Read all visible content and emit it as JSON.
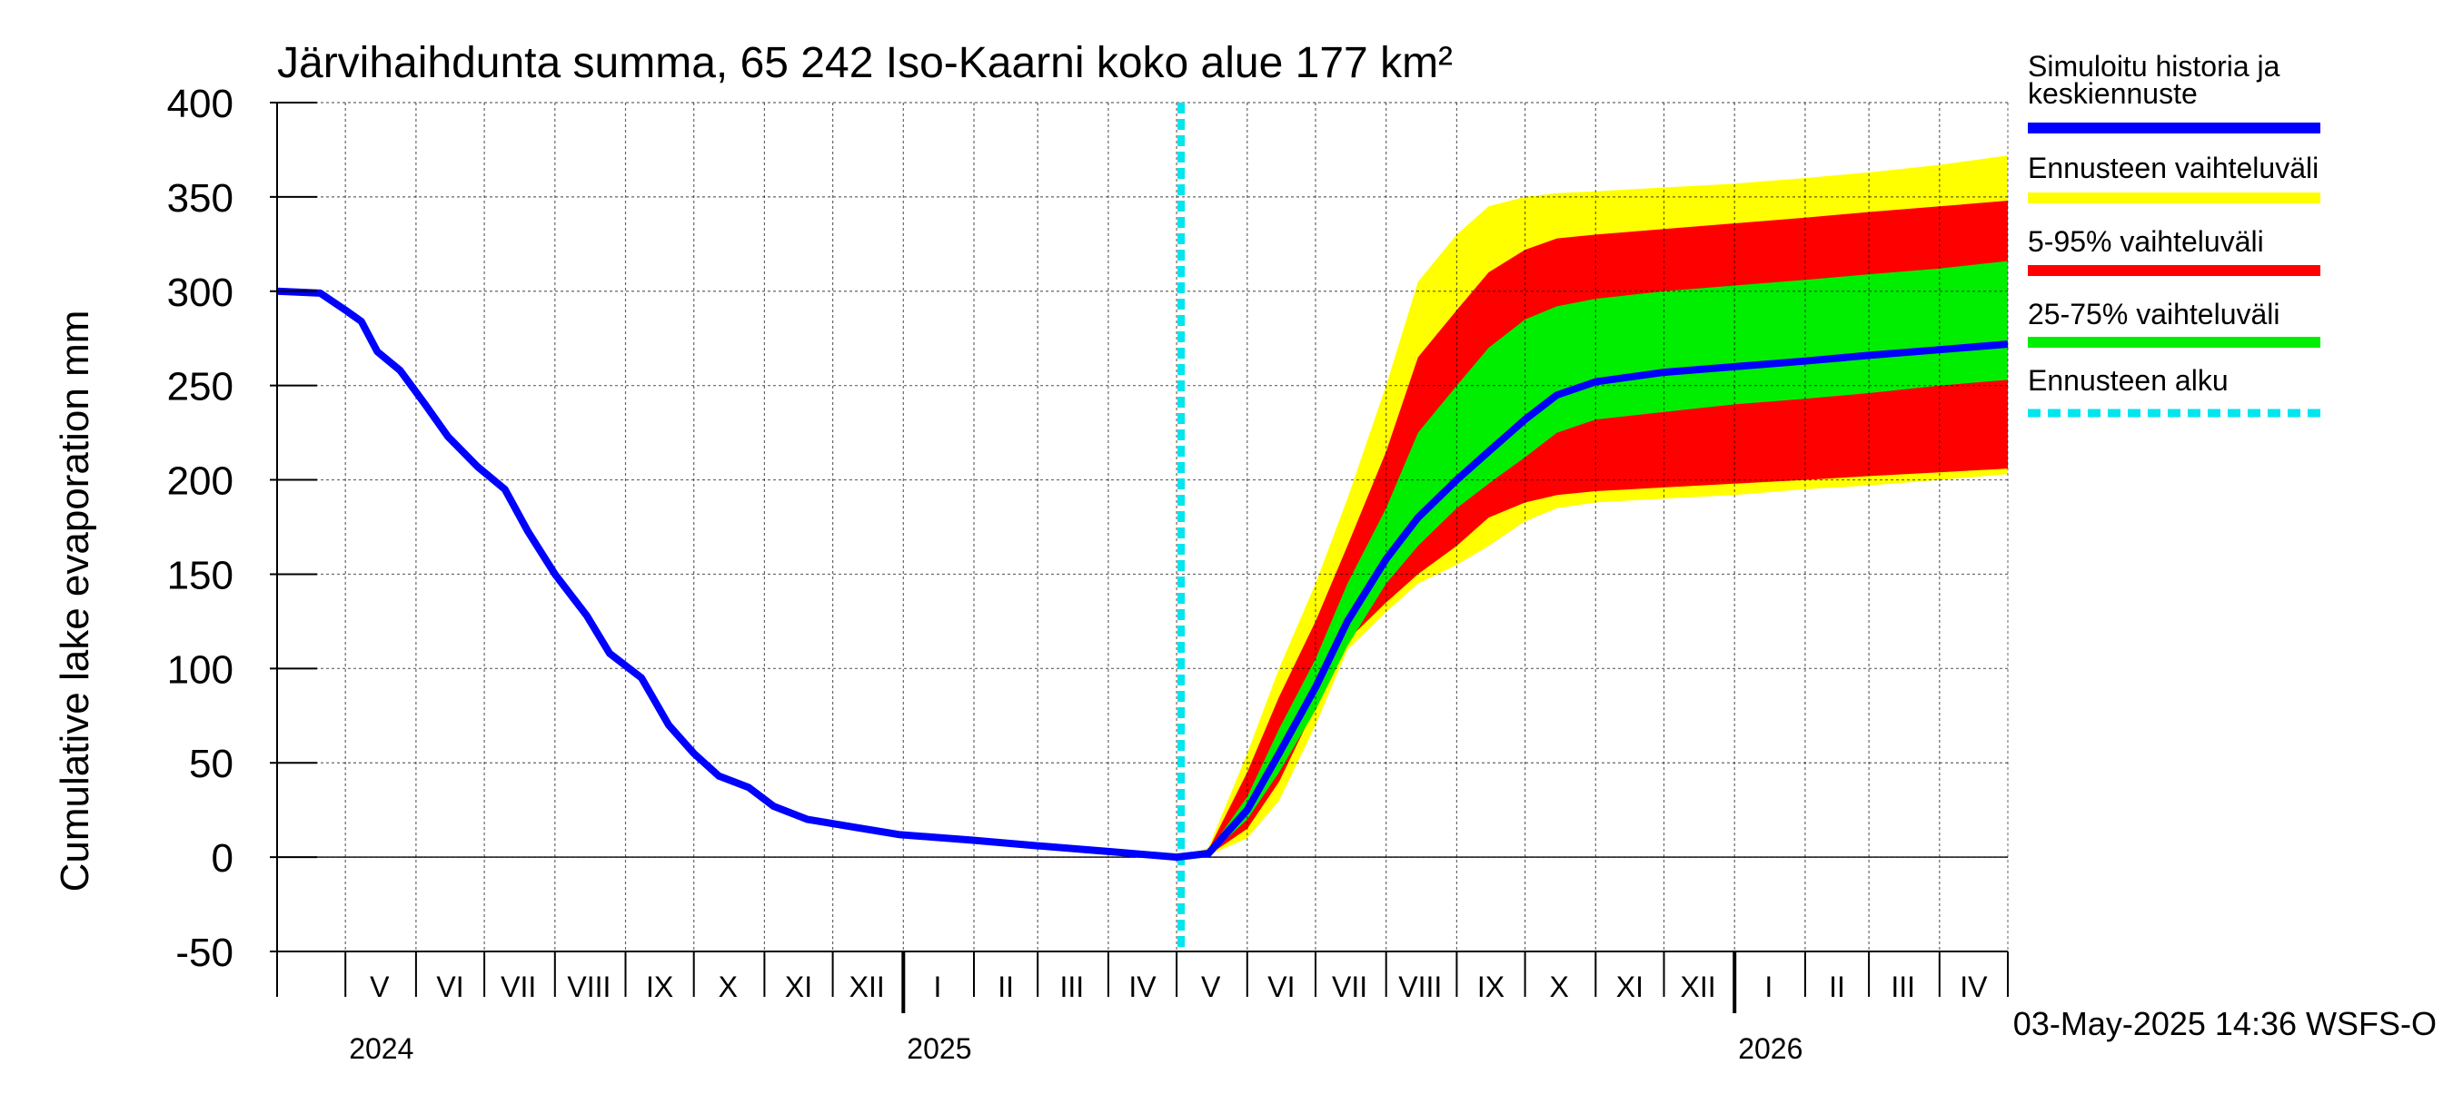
{
  "chart_data": {
    "type": "area",
    "title": "Järvihaihdunta summa, 65 242 Iso-Kaarni koko alue 177 km²",
    "ylabel": "Cumulative lake evaporation   mm",
    "xlabel": "",
    "ylim": [
      -50,
      400
    ],
    "xlim": [
      "2024-04-01",
      "2026-05-01"
    ],
    "yticks": [
      -50,
      0,
      50,
      100,
      150,
      200,
      250,
      300,
      350,
      400
    ],
    "grid": true,
    "legend_placement": "right",
    "month_labels": [
      {
        "label": "V",
        "date": "2024-05-16"
      },
      {
        "label": "VI",
        "date": "2024-06-16"
      },
      {
        "label": "VII",
        "date": "2024-07-16"
      },
      {
        "label": "VIII",
        "date": "2024-08-16"
      },
      {
        "label": "IX",
        "date": "2024-09-16"
      },
      {
        "label": "X",
        "date": "2024-10-16"
      },
      {
        "label": "XI",
        "date": "2024-11-16"
      },
      {
        "label": "XII",
        "date": "2024-12-16"
      },
      {
        "label": "I",
        "date": "2025-01-16"
      },
      {
        "label": "II",
        "date": "2025-02-15"
      },
      {
        "label": "III",
        "date": "2025-03-16"
      },
      {
        "label": "IV",
        "date": "2025-04-16"
      },
      {
        "label": "V",
        "date": "2025-05-16"
      },
      {
        "label": "VI",
        "date": "2025-06-16"
      },
      {
        "label": "VII",
        "date": "2025-07-16"
      },
      {
        "label": "VIII",
        "date": "2025-08-16"
      },
      {
        "label": "IX",
        "date": "2025-09-16"
      },
      {
        "label": "X",
        "date": "2025-10-16"
      },
      {
        "label": "XI",
        "date": "2025-11-16"
      },
      {
        "label": "XII",
        "date": "2025-12-16"
      },
      {
        "label": "I",
        "date": "2026-01-16"
      },
      {
        "label": "II",
        "date": "2026-02-15"
      },
      {
        "label": "III",
        "date": "2026-03-16"
      },
      {
        "label": "IV",
        "date": "2026-04-16"
      }
    ],
    "year_labels": [
      {
        "label": "2024",
        "date": "2024-05-01"
      },
      {
        "label": "2025",
        "date": "2025-01-01"
      },
      {
        "label": "2026",
        "date": "2026-01-01"
      }
    ],
    "forecast_start": "2025-05-03",
    "series": [
      {
        "name": "Simuloitu historia ja keskiennuste",
        "color": "#0000ff",
        "points": [
          [
            "2024-04-01",
            300
          ],
          [
            "2024-04-20",
            299
          ],
          [
            "2024-05-01",
            290
          ],
          [
            "2024-05-08",
            284
          ],
          [
            "2024-05-15",
            268
          ],
          [
            "2024-05-25",
            258
          ],
          [
            "2024-06-05",
            240
          ],
          [
            "2024-06-15",
            223
          ],
          [
            "2024-06-28",
            207
          ],
          [
            "2024-07-10",
            195
          ],
          [
            "2024-07-20",
            173
          ],
          [
            "2024-08-01",
            150
          ],
          [
            "2024-08-15",
            128
          ],
          [
            "2024-08-25",
            108
          ],
          [
            "2024-09-08",
            95
          ],
          [
            "2024-09-20",
            70
          ],
          [
            "2024-10-01",
            55
          ],
          [
            "2024-10-12",
            43
          ],
          [
            "2024-10-25",
            37
          ],
          [
            "2024-11-05",
            27
          ],
          [
            "2024-11-20",
            20
          ],
          [
            "2024-12-10",
            16
          ],
          [
            "2024-12-30",
            12
          ],
          [
            "2025-01-31",
            9
          ],
          [
            "2025-03-01",
            6
          ],
          [
            "2025-04-01",
            3
          ],
          [
            "2025-05-01",
            0
          ],
          [
            "2025-05-15",
            2
          ],
          [
            "2025-06-01",
            25
          ],
          [
            "2025-06-15",
            55
          ],
          [
            "2025-07-01",
            90
          ],
          [
            "2025-07-15",
            125
          ],
          [
            "2025-08-01",
            158
          ],
          [
            "2025-08-15",
            180
          ],
          [
            "2025-09-01",
            200
          ],
          [
            "2025-09-15",
            215
          ],
          [
            "2025-10-01",
            232
          ],
          [
            "2025-10-15",
            245
          ],
          [
            "2025-11-01",
            252
          ],
          [
            "2025-12-01",
            257
          ],
          [
            "2026-01-01",
            260
          ],
          [
            "2026-02-01",
            263
          ],
          [
            "2026-03-01",
            266
          ],
          [
            "2026-04-01",
            269
          ],
          [
            "2026-05-01",
            272
          ]
        ]
      },
      {
        "name": "Ennusteen vaihteluväli",
        "color": "#ffff00",
        "x": [
          "2025-05-03",
          "2025-05-15",
          "2025-06-01",
          "2025-06-15",
          "2025-07-01",
          "2025-07-15",
          "2025-08-01",
          "2025-08-15",
          "2025-09-01",
          "2025-09-15",
          "2025-10-01",
          "2025-10-15",
          "2025-11-01",
          "2025-12-01",
          "2026-01-01",
          "2026-02-01",
          "2026-03-01",
          "2026-04-01",
          "2026-05-01"
        ],
        "upper": [
          0,
          5,
          55,
          100,
          145,
          190,
          250,
          305,
          330,
          345,
          350,
          352,
          353,
          355,
          357,
          360,
          363,
          367,
          372
        ],
        "lower": [
          0,
          1,
          10,
          30,
          70,
          110,
          130,
          145,
          155,
          165,
          178,
          185,
          188,
          190,
          192,
          195,
          197,
          200,
          203
        ]
      },
      {
        "name": "5-95% vaihteluväli",
        "color": "#ff0000",
        "x": [
          "2025-05-03",
          "2025-05-15",
          "2025-06-01",
          "2025-06-15",
          "2025-07-01",
          "2025-07-15",
          "2025-08-01",
          "2025-08-15",
          "2025-09-01",
          "2025-09-15",
          "2025-10-01",
          "2025-10-15",
          "2025-11-01",
          "2025-12-01",
          "2026-01-01",
          "2026-02-01",
          "2026-03-01",
          "2026-04-01",
          "2026-05-01"
        ],
        "upper": [
          0,
          4,
          45,
          85,
          125,
          165,
          215,
          265,
          290,
          310,
          322,
          328,
          330,
          333,
          336,
          339,
          342,
          345,
          348
        ],
        "lower": [
          0,
          1,
          15,
          40,
          80,
          115,
          135,
          150,
          165,
          180,
          188,
          192,
          194,
          196,
          198,
          200,
          202,
          204,
          206
        ]
      },
      {
        "name": "25-75% vaihteluväli",
        "color": "#00ee00",
        "x": [
          "2025-05-03",
          "2025-05-15",
          "2025-06-01",
          "2025-06-15",
          "2025-07-01",
          "2025-07-15",
          "2025-08-01",
          "2025-08-15",
          "2025-09-01",
          "2025-09-15",
          "2025-10-01",
          "2025-10-15",
          "2025-11-01",
          "2025-12-01",
          "2026-01-01",
          "2026-02-01",
          "2026-03-01",
          "2026-04-01",
          "2026-05-01"
        ],
        "upper": [
          0,
          3,
          32,
          68,
          105,
          145,
          185,
          225,
          250,
          270,
          285,
          292,
          296,
          300,
          303,
          306,
          309,
          312,
          316
        ],
        "lower": [
          0,
          1,
          20,
          45,
          78,
          112,
          145,
          165,
          185,
          198,
          212,
          225,
          232,
          236,
          240,
          243,
          246,
          250,
          253
        ]
      }
    ],
    "legend": [
      {
        "label": "Simuloitu historia ja keskiennuste",
        "color": "#0000ff",
        "style": "solid"
      },
      {
        "label": "Ennusteen vaihteluväli",
        "color": "#ffff00",
        "style": "solid"
      },
      {
        "label": "5-95% vaihteluväli",
        "color": "#ff0000",
        "style": "solid"
      },
      {
        "label": "25-75% vaihteluväli",
        "color": "#00ee00",
        "style": "solid"
      },
      {
        "label": "Ennusteen alku",
        "color": "#00e5ee",
        "style": "dashed"
      }
    ],
    "legend_lines": [
      [
        "Simuloitu historia ja",
        "keskiennuste"
      ],
      [
        "Ennusteen vaihteluväli"
      ],
      [
        "5-95% vaihteluväli"
      ],
      [
        "25-75% vaihteluväli"
      ],
      [
        "Ennusteen alku"
      ]
    ],
    "footer": "03-May-2025 14:36 WSFS-O"
  }
}
